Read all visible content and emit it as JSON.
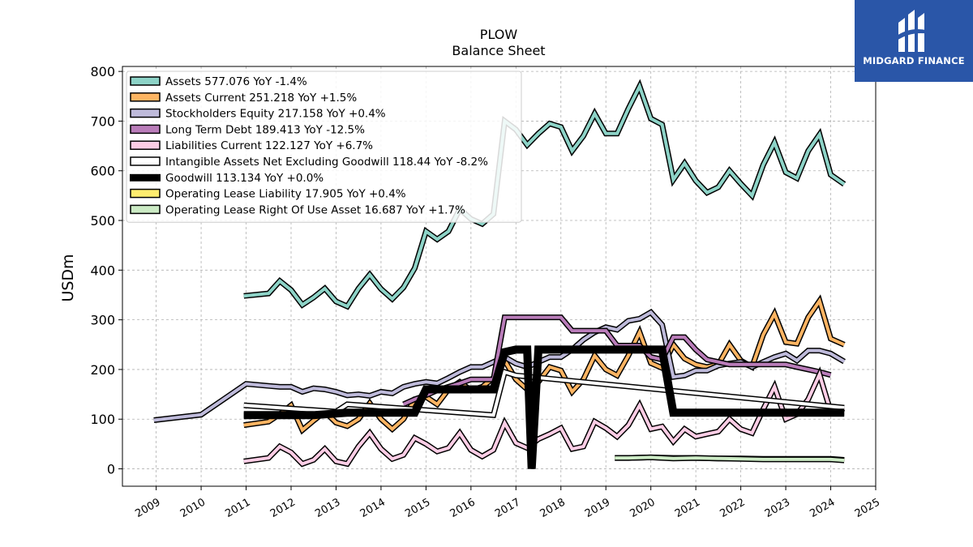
{
  "brand": {
    "name": "MIDGARD FINANCE",
    "bg_color": "#2a56a8"
  },
  "chart_data": {
    "type": "line",
    "title": "PLOW",
    "subtitle": "Balance  Sheet",
    "ylabel": "USDm",
    "xlabel": "",
    "ylim": [
      -35,
      810
    ],
    "xlim": [
      2008.25,
      2025.0
    ],
    "yticks": [
      0,
      100,
      200,
      300,
      400,
      500,
      600,
      700,
      800
    ],
    "xticks": [
      2009,
      2010,
      2011,
      2012,
      2013,
      2014,
      2015,
      2016,
      2017,
      2018,
      2019,
      2020,
      2021,
      2022,
      2023,
      2024,
      2025
    ],
    "grid": true,
    "legend_position": "top-left",
    "series": [
      {
        "name": "Assets",
        "legend": "Assets  577.076 YoY -1.4%",
        "color": "#8dd3c7",
        "width": 4,
        "x": [
          2010.95,
          2011.5,
          2011.75,
          2012.0,
          2012.25,
          2012.5,
          2012.75,
          2013.0,
          2013.25,
          2013.5,
          2013.75,
          2014.0,
          2014.25,
          2014.5,
          2014.75,
          2015.0,
          2015.25,
          2015.5,
          2015.75,
          2016.0,
          2016.25,
          2016.5,
          2016.75,
          2017.0,
          2017.25,
          2017.5,
          2017.75,
          2018.0,
          2018.25,
          2018.5,
          2018.75,
          2019.0,
          2019.25,
          2019.5,
          2019.75,
          2020.0,
          2020.25,
          2020.5,
          2020.75,
          2021.0,
          2021.25,
          2021.5,
          2021.75,
          2022.0,
          2022.25,
          2022.5,
          2022.75,
          2023.0,
          2023.25,
          2023.5,
          2023.75,
          2024.0,
          2024.3
        ],
        "y": [
          348,
          353,
          378,
          360,
          330,
          345,
          363,
          337,
          327,
          363,
          391,
          362,
          342,
          365,
          404,
          478,
          462,
          478,
          523,
          503,
          493,
          513,
          700,
          683,
          652,
          675,
          695,
          688,
          640,
          670,
          715,
          675,
          675,
          725,
          770,
          705,
          693,
          582,
          615,
          580,
          556,
          567,
          600,
          574,
          550,
          612,
          657,
          597,
          585,
          640,
          673,
          592,
          573
        ]
      },
      {
        "name": "Assets Current",
        "legend": "Assets Current  251.218 YoY +1.5%",
        "color": "#fdb462",
        "width": 4,
        "x": [
          2010.95,
          2011.5,
          2011.75,
          2012.0,
          2012.25,
          2012.5,
          2012.75,
          2013.0,
          2013.25,
          2013.5,
          2013.75,
          2014.0,
          2014.25,
          2014.5,
          2014.75,
          2015.0,
          2015.25,
          2015.5,
          2015.75,
          2016.0,
          2016.25,
          2016.5,
          2016.75,
          2017.0,
          2017.25,
          2017.5,
          2017.75,
          2018.0,
          2018.25,
          2018.5,
          2018.75,
          2019.0,
          2019.25,
          2019.5,
          2019.75,
          2020.0,
          2020.25,
          2020.5,
          2020.75,
          2021.0,
          2021.25,
          2021.5,
          2021.75,
          2022.0,
          2022.25,
          2022.5,
          2022.75,
          2023.0,
          2023.25,
          2023.5,
          2023.75,
          2024.0,
          2024.3
        ],
        "y": [
          88,
          95,
          110,
          128,
          78,
          97,
          115,
          93,
          86,
          100,
          132,
          100,
          80,
          100,
          140,
          145,
          130,
          160,
          175,
          158,
          165,
          183,
          218,
          180,
          160,
          175,
          205,
          198,
          155,
          180,
          228,
          200,
          188,
          228,
          275,
          213,
          203,
          250,
          222,
          210,
          205,
          210,
          250,
          218,
          205,
          270,
          312,
          255,
          252,
          305,
          338,
          262,
          250
        ]
      },
      {
        "name": "Stockholders Equity",
        "legend": "Stockholders Equity  217.158 YoY +0.4%",
        "color": "#bebada",
        "width": 4,
        "x": [
          2008.95,
          2010.0,
          2010.5,
          2011.0,
          2011.5,
          2011.75,
          2012.0,
          2012.25,
          2012.5,
          2012.75,
          2013.0,
          2013.25,
          2013.5,
          2013.75,
          2014.0,
          2014.25,
          2014.5,
          2014.75,
          2015.0,
          2015.25,
          2015.5,
          2015.75,
          2016.0,
          2016.25,
          2016.5,
          2016.75,
          2017.0,
          2017.25,
          2017.5,
          2017.75,
          2018.0,
          2018.25,
          2018.5,
          2018.75,
          2019.0,
          2019.25,
          2019.5,
          2019.75,
          2020.0,
          2020.25,
          2020.5,
          2020.75,
          2021.0,
          2021.25,
          2021.5,
          2021.75,
          2022.0,
          2022.25,
          2022.5,
          2022.75,
          2023.0,
          2023.25,
          2023.5,
          2023.75,
          2024.0,
          2024.3
        ],
        "y": [
          98,
          109,
          140,
          171,
          167,
          165,
          165,
          155,
          162,
          160,
          155,
          148,
          150,
          147,
          155,
          152,
          165,
          171,
          175,
          172,
          183,
          195,
          205,
          205,
          215,
          225,
          212,
          205,
          215,
          225,
          225,
          240,
          260,
          275,
          285,
          280,
          298,
          302,
          315,
          290,
          185,
          188,
          198,
          198,
          208,
          212,
          215,
          205,
          215,
          225,
          232,
          218,
          238,
          238,
          232,
          216
        ]
      },
      {
        "name": "Long Term Debt",
        "legend": "Long Term Debt  189.413 YoY -12.5%",
        "color": "#b97cb9",
        "width": 4,
        "x": [
          2014.5,
          2014.75,
          2015.0,
          2015.25,
          2015.5,
          2015.75,
          2016.0,
          2016.25,
          2016.5,
          2016.75,
          2017.0,
          2017.25,
          2017.5,
          2017.75,
          2018.0,
          2018.25,
          2018.5,
          2018.75,
          2019.0,
          2019.25,
          2019.5,
          2019.75,
          2020.0,
          2020.25,
          2020.5,
          2020.75,
          2021.0,
          2021.25,
          2021.5,
          2021.75,
          2022.0,
          2022.25,
          2022.5,
          2022.75,
          2023.0,
          2023.25,
          2023.5,
          2023.75,
          2024.0
        ],
        "y": [
          130,
          140,
          148,
          158,
          165,
          172,
          180,
          180,
          180,
          305,
          305,
          305,
          305,
          305,
          305,
          278,
          278,
          278,
          278,
          248,
          248,
          248,
          225,
          220,
          265,
          265,
          240,
          220,
          215,
          210,
          210,
          210,
          210,
          210,
          210,
          205,
          200,
          195,
          189
        ]
      },
      {
        "name": "Liabilities Current",
        "legend": "Liabilities Current  122.127 YoY +6.7%",
        "color": "#fccde5",
        "width": 4,
        "x": [
          2010.95,
          2011.5,
          2011.75,
          2012.0,
          2012.25,
          2012.5,
          2012.75,
          2013.0,
          2013.25,
          2013.5,
          2013.75,
          2014.0,
          2014.25,
          2014.5,
          2014.75,
          2015.0,
          2015.25,
          2015.5,
          2015.75,
          2016.0,
          2016.25,
          2016.5,
          2016.75,
          2017.0,
          2017.25,
          2017.5,
          2017.75,
          2018.0,
          2018.25,
          2018.5,
          2018.75,
          2019.0,
          2019.25,
          2019.5,
          2019.75,
          2020.0,
          2020.25,
          2020.5,
          2020.75,
          2021.0,
          2021.25,
          2021.5,
          2021.75,
          2022.0,
          2022.25,
          2022.5,
          2022.75,
          2023.0,
          2023.25,
          2023.5,
          2023.75,
          2024.0,
          2024.3
        ],
        "y": [
          15,
          22,
          45,
          33,
          10,
          18,
          40,
          15,
          10,
          45,
          72,
          40,
          20,
          28,
          62,
          50,
          35,
          42,
          72,
          38,
          25,
          38,
          92,
          52,
          42,
          60,
          70,
          82,
          40,
          45,
          95,
          82,
          65,
          88,
          128,
          80,
          85,
          55,
          80,
          65,
          70,
          75,
          100,
          80,
          72,
          120,
          165,
          100,
          110,
          140,
          190,
          115,
          122
        ]
      },
      {
        "name": "Intangible Assets Net Excluding Goodwill",
        "legend": "Intangible Assets Net Excluding Goodwill  118.44 YoY -8.2%",
        "color": "#ffffff",
        "width": 4,
        "x": [
          2010.95,
          2013.0,
          2013.25,
          2016.5,
          2016.75,
          2017.0,
          2024.3
        ],
        "y": [
          128,
          115,
          130,
          108,
          195,
          188,
          123
        ]
      },
      {
        "name": "Goodwill",
        "legend": "Goodwill  113.134 YoY +0.0%",
        "color": "#000000",
        "width": 7,
        "x": [
          2010.95,
          2012.5,
          2013.25,
          2014.75,
          2015.0,
          2016.5,
          2016.75,
          2017.0,
          2017.25,
          2017.35,
          2017.5,
          2020.25,
          2020.5,
          2024.3
        ],
        "y": [
          108,
          108,
          113,
          113,
          160,
          160,
          235,
          240,
          240,
          0,
          240,
          240,
          113,
          113
        ]
      },
      {
        "name": "Operating Lease Liability",
        "legend": "Operating Lease Liability  17.905 YoY +0.4%",
        "color": "#ffed6f",
        "width": 4,
        "x": [
          2019.2,
          2019.5,
          2020.0,
          2020.5,
          2021.0,
          2021.5,
          2022.0,
          2022.5,
          2023.0,
          2023.5,
          2024.0,
          2024.3
        ],
        "y": [
          22,
          22,
          23,
          22,
          22,
          21,
          21,
          20,
          20,
          20,
          20,
          18
        ]
      },
      {
        "name": "Operating Lease Right Of Use Asset",
        "legend": "Operating Lease Right Of Use Asset  16.687 YoY +1.7%",
        "color": "#ccebc5",
        "width": 4,
        "x": [
          2019.2,
          2019.5,
          2020.0,
          2020.5,
          2021.0,
          2021.5,
          2022.0,
          2022.5,
          2023.0,
          2023.5,
          2024.0,
          2024.3
        ],
        "y": [
          22,
          22,
          23,
          21,
          22,
          21,
          20,
          19,
          19,
          19,
          19,
          17
        ]
      }
    ]
  }
}
